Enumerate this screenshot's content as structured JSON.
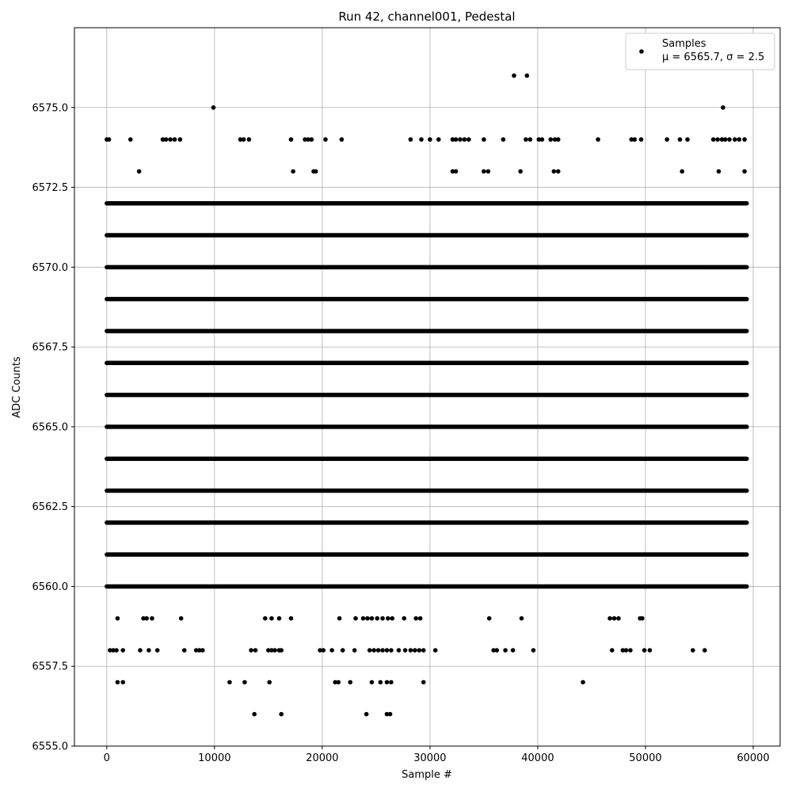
{
  "chart_data": {
    "type": "scatter",
    "title": "Run 42, channel001, Pedestal",
    "xlabel": "Sample #",
    "ylabel": "ADC Counts",
    "xlim": [
      -3000,
      62500
    ],
    "ylim": [
      6555.0,
      6577.5
    ],
    "xticks": [
      0,
      10000,
      20000,
      30000,
      40000,
      50000,
      60000
    ],
    "yticks": [
      6555.0,
      6557.5,
      6560.0,
      6562.5,
      6565.0,
      6567.5,
      6570.0,
      6572.5,
      6575.0
    ],
    "xtick_labels": [
      "0",
      "10000",
      "20000",
      "30000",
      "40000",
      "50000",
      "60000"
    ],
    "ytick_labels": [
      "6555.0",
      "6557.5",
      "6560.0",
      "6562.5",
      "6565.0",
      "6567.5",
      "6570.0",
      "6572.5",
      "6575.0"
    ],
    "grid": true,
    "legend": {
      "placement": "top-right",
      "entries": [
        {
          "label": "Samples",
          "detail": "μ = 6565.7, σ = 2.5",
          "marker": "dot",
          "color": "#000000"
        }
      ]
    },
    "series": [
      {
        "name": "Samples",
        "color": "#000000",
        "dense_bands": [
          {
            "y": 6564,
            "x_range": [
              0,
              59400
            ]
          },
          {
            "y": 6565,
            "x_range": [
              0,
              59400
            ]
          },
          {
            "y": 6566,
            "x_range": [
              0,
              59400
            ]
          },
          {
            "y": 6567,
            "x_range": [
              0,
              59400
            ]
          },
          {
            "y": 6568,
            "x_range": [
              0,
              59400
            ]
          },
          {
            "y": 6570,
            "x_range": [
              0,
              59400
            ]
          },
          {
            "y": 6562,
            "x_range": [
              0,
              59400
            ]
          },
          {
            "y": 6561,
            "x_range": [
              0,
              59400
            ]
          },
          {
            "y": 6563,
            "x_range": [
              0,
              59400
            ]
          },
          {
            "y": 6569,
            "x_range": [
              0,
              59400
            ]
          },
          {
            "y": 6571,
            "x_range": [
              0,
              59400
            ]
          },
          {
            "y": 6572,
            "x_range": [
              0,
              59400
            ]
          },
          {
            "y": 6560,
            "x_range": [
              0,
              59400
            ]
          }
        ],
        "points": [
          [
            0,
            6574
          ],
          [
            200,
            6574
          ],
          [
            2200,
            6574
          ],
          [
            5200,
            6574
          ],
          [
            5500,
            6574
          ],
          [
            5900,
            6574
          ],
          [
            6300,
            6574
          ],
          [
            6800,
            6574
          ],
          [
            12400,
            6574
          ],
          [
            12700,
            6574
          ],
          [
            13200,
            6574
          ],
          [
            17100,
            6574
          ],
          [
            18400,
            6574
          ],
          [
            18700,
            6574
          ],
          [
            19000,
            6574
          ],
          [
            20300,
            6574
          ],
          [
            21800,
            6574
          ],
          [
            28200,
            6574
          ],
          [
            29200,
            6574
          ],
          [
            30000,
            6574
          ],
          [
            30800,
            6574
          ],
          [
            32100,
            6574
          ],
          [
            32400,
            6574
          ],
          [
            32800,
            6574
          ],
          [
            33200,
            6574
          ],
          [
            33600,
            6574
          ],
          [
            35000,
            6574
          ],
          [
            36800,
            6574
          ],
          [
            38900,
            6574
          ],
          [
            39300,
            6574
          ],
          [
            40100,
            6574
          ],
          [
            40400,
            6574
          ],
          [
            41200,
            6574
          ],
          [
            41600,
            6574
          ],
          [
            41900,
            6574
          ],
          [
            45600,
            6574
          ],
          [
            48700,
            6574
          ],
          [
            49000,
            6574
          ],
          [
            49600,
            6574
          ],
          [
            52000,
            6574
          ],
          [
            53200,
            6574
          ],
          [
            53900,
            6574
          ],
          [
            56300,
            6574
          ],
          [
            56700,
            6574
          ],
          [
            57100,
            6574
          ],
          [
            57400,
            6574
          ],
          [
            57800,
            6574
          ],
          [
            58300,
            6574
          ],
          [
            58700,
            6574
          ],
          [
            59200,
            6574
          ],
          [
            3000,
            6573
          ],
          [
            17300,
            6573
          ],
          [
            19200,
            6573
          ],
          [
            19400,
            6573
          ],
          [
            32100,
            6573
          ],
          [
            32400,
            6573
          ],
          [
            35000,
            6573
          ],
          [
            35400,
            6573
          ],
          [
            38400,
            6573
          ],
          [
            41500,
            6573
          ],
          [
            41900,
            6573
          ],
          [
            53400,
            6573
          ],
          [
            56800,
            6573
          ],
          [
            59200,
            6573
          ],
          [
            9900,
            6575
          ],
          [
            57200,
            6575
          ],
          [
            37800,
            6576
          ],
          [
            39000,
            6576
          ],
          [
            1000,
            6559
          ],
          [
            3400,
            6559
          ],
          [
            3700,
            6559
          ],
          [
            4200,
            6559
          ],
          [
            6900,
            6559
          ],
          [
            14700,
            6559
          ],
          [
            15300,
            6559
          ],
          [
            16000,
            6559
          ],
          [
            17100,
            6559
          ],
          [
            21600,
            6559
          ],
          [
            23100,
            6559
          ],
          [
            23800,
            6559
          ],
          [
            24200,
            6559
          ],
          [
            24600,
            6559
          ],
          [
            25100,
            6559
          ],
          [
            25600,
            6559
          ],
          [
            26100,
            6559
          ],
          [
            26500,
            6559
          ],
          [
            27600,
            6559
          ],
          [
            28700,
            6559
          ],
          [
            29100,
            6559
          ],
          [
            35500,
            6559
          ],
          [
            38500,
            6559
          ],
          [
            46700,
            6559
          ],
          [
            47100,
            6559
          ],
          [
            47500,
            6559
          ],
          [
            49500,
            6559
          ],
          [
            49700,
            6559
          ],
          [
            300,
            6558
          ],
          [
            600,
            6558
          ],
          [
            900,
            6558
          ],
          [
            1500,
            6558
          ],
          [
            3100,
            6558
          ],
          [
            3900,
            6558
          ],
          [
            4700,
            6558
          ],
          [
            7200,
            6558
          ],
          [
            8300,
            6558
          ],
          [
            8600,
            6558
          ],
          [
            8900,
            6558
          ],
          [
            13400,
            6558
          ],
          [
            13800,
            6558
          ],
          [
            15000,
            6558
          ],
          [
            15300,
            6558
          ],
          [
            15600,
            6558
          ],
          [
            16000,
            6558
          ],
          [
            16200,
            6558
          ],
          [
            19800,
            6558
          ],
          [
            20100,
            6558
          ],
          [
            20900,
            6558
          ],
          [
            21900,
            6558
          ],
          [
            23000,
            6558
          ],
          [
            24400,
            6558
          ],
          [
            24800,
            6558
          ],
          [
            25200,
            6558
          ],
          [
            25600,
            6558
          ],
          [
            26000,
            6558
          ],
          [
            26400,
            6558
          ],
          [
            27100,
            6558
          ],
          [
            27700,
            6558
          ],
          [
            28200,
            6558
          ],
          [
            28600,
            6558
          ],
          [
            29000,
            6558
          ],
          [
            29400,
            6558
          ],
          [
            30500,
            6558
          ],
          [
            35900,
            6558
          ],
          [
            36200,
            6558
          ],
          [
            37000,
            6558
          ],
          [
            37700,
            6558
          ],
          [
            39600,
            6558
          ],
          [
            46900,
            6558
          ],
          [
            47900,
            6558
          ],
          [
            48200,
            6558
          ],
          [
            48600,
            6558
          ],
          [
            49900,
            6558
          ],
          [
            50400,
            6558
          ],
          [
            54400,
            6558
          ],
          [
            55500,
            6558
          ],
          [
            1000,
            6557
          ],
          [
            1500,
            6557
          ],
          [
            11400,
            6557
          ],
          [
            12800,
            6557
          ],
          [
            15100,
            6557
          ],
          [
            21200,
            6557
          ],
          [
            21500,
            6557
          ],
          [
            22600,
            6557
          ],
          [
            24600,
            6557
          ],
          [
            25400,
            6557
          ],
          [
            26000,
            6557
          ],
          [
            26400,
            6557
          ],
          [
            29400,
            6557
          ],
          [
            44200,
            6557
          ],
          [
            13700,
            6556
          ],
          [
            16200,
            6556
          ],
          [
            24100,
            6556
          ],
          [
            26000,
            6556
          ],
          [
            26300,
            6556
          ]
        ]
      }
    ]
  }
}
